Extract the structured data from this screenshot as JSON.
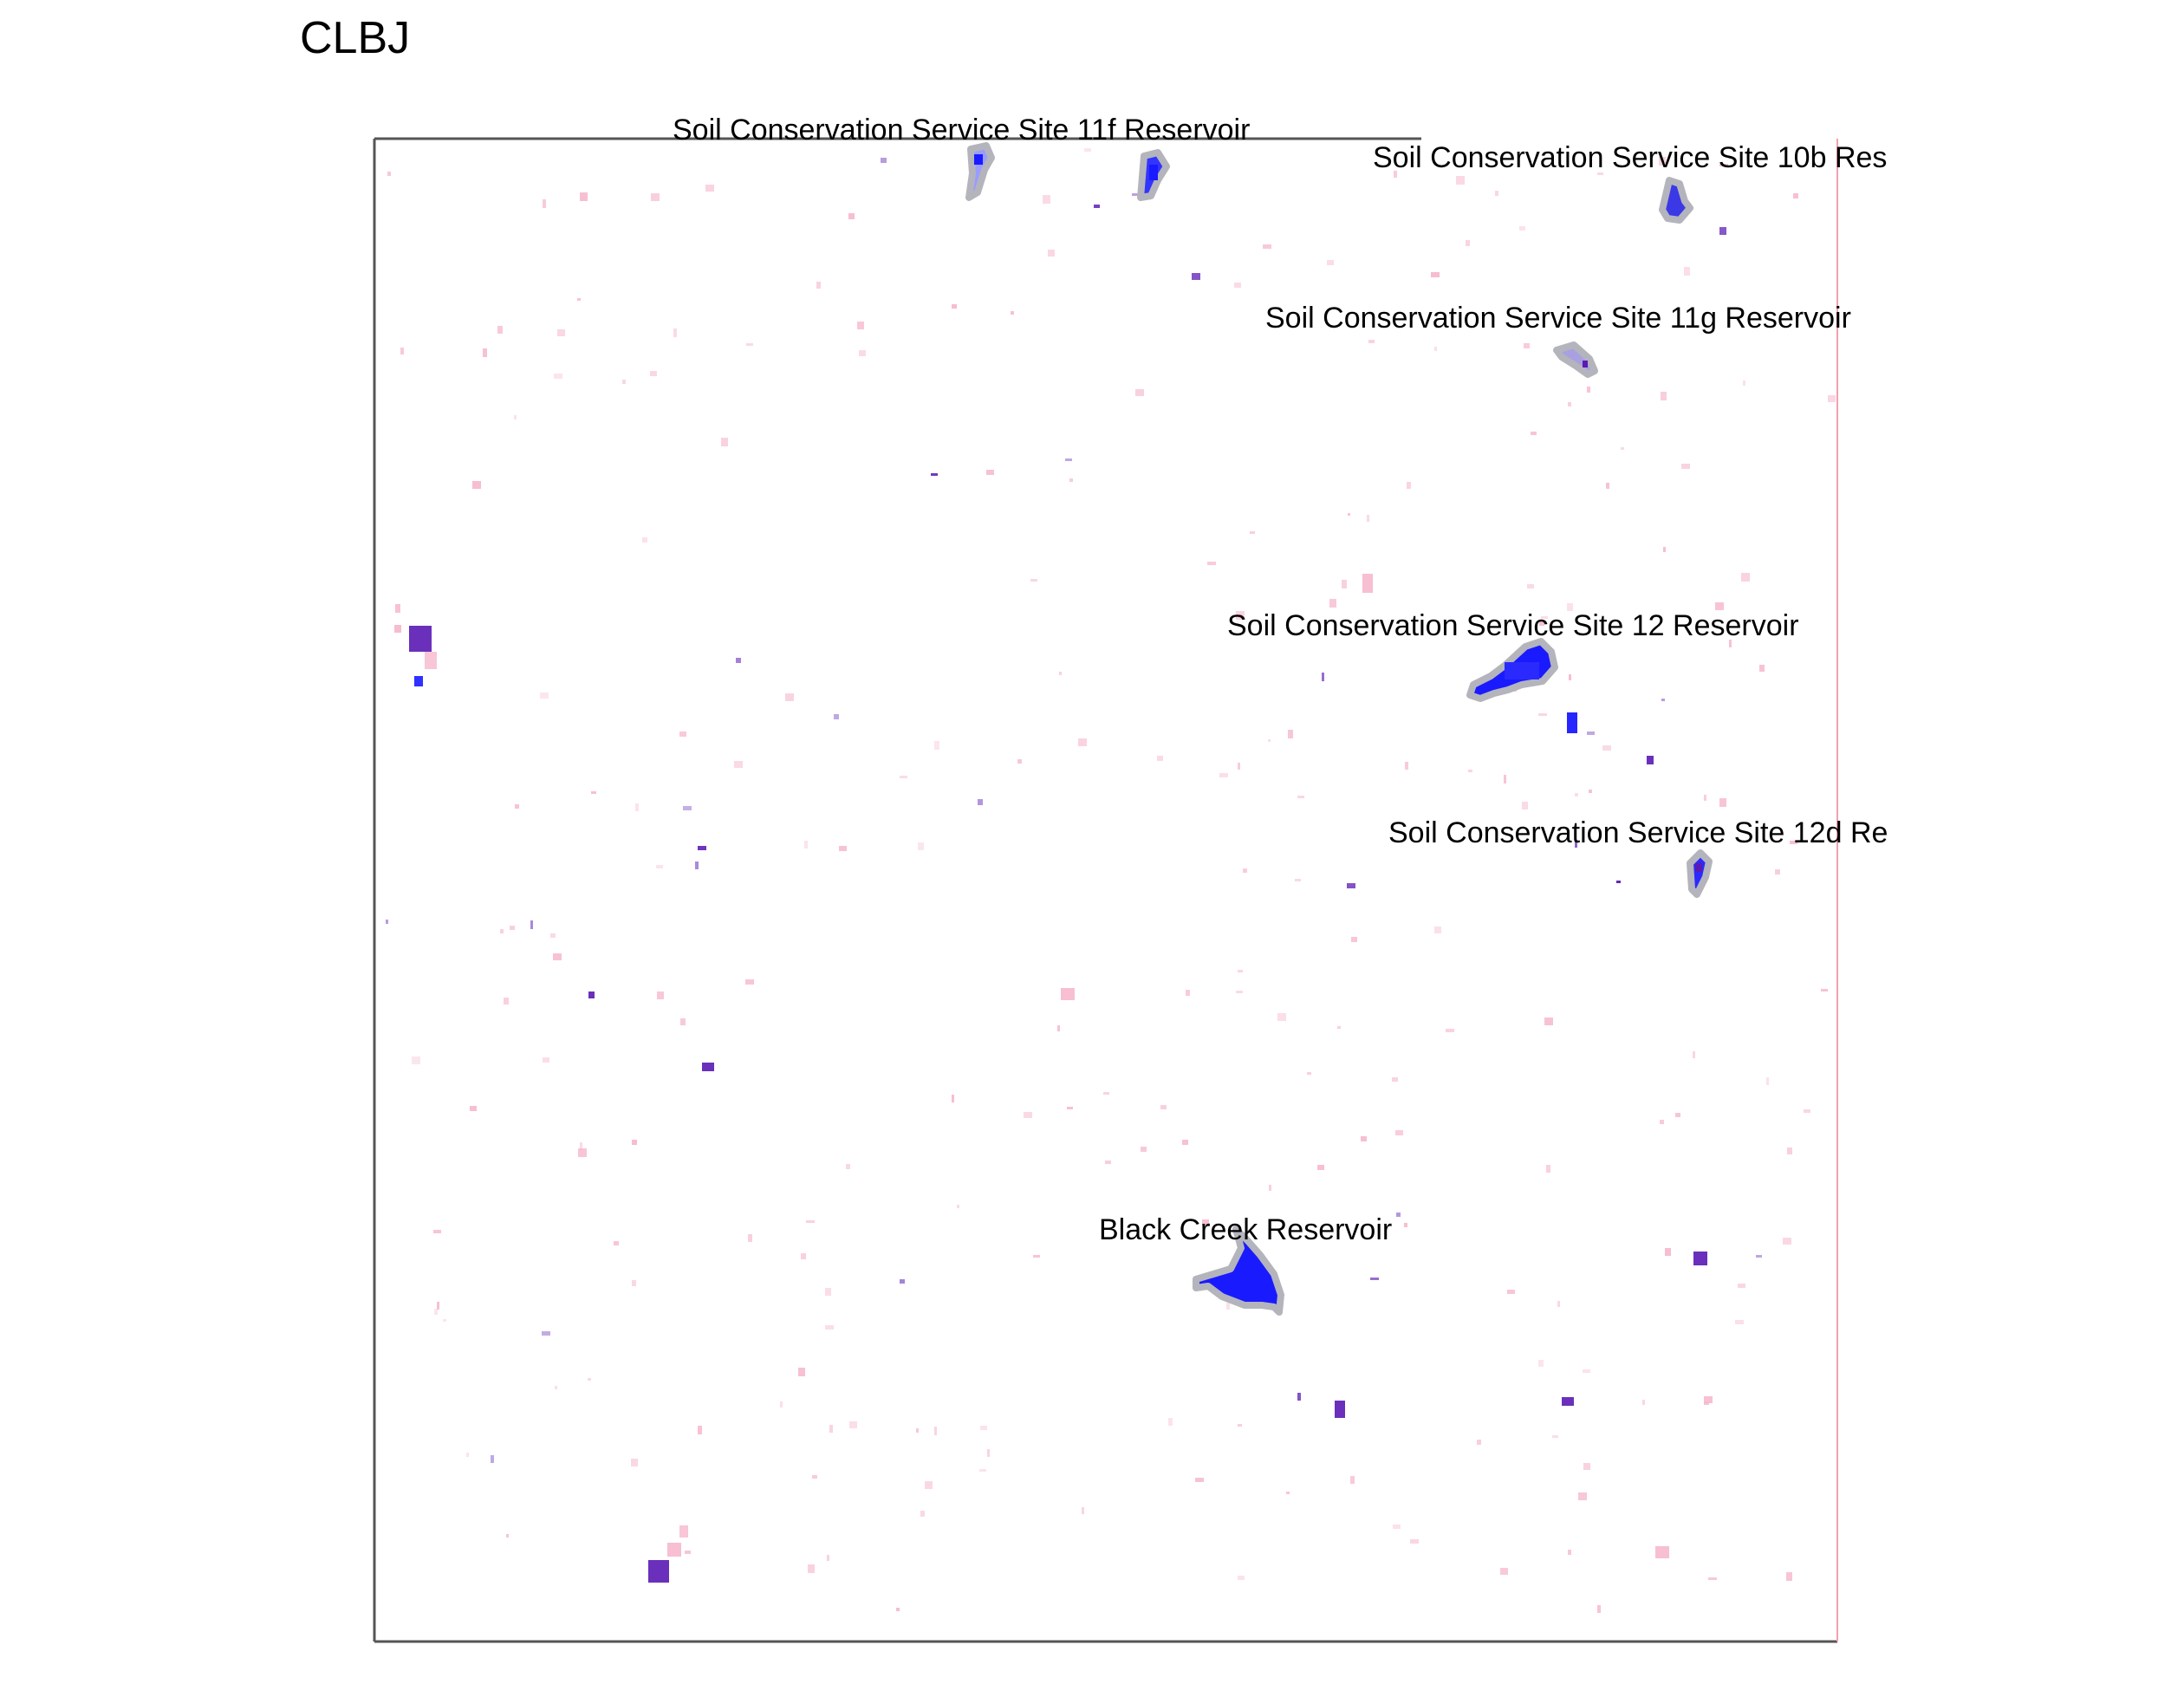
{
  "title": "CLBJ",
  "reservoir_labels": [
    "Soil Conservation Service Site 11f Reservoir",
    "Soil Conservation Service Site 10b Res",
    "Soil Conservation Service Site 11g Reservoir",
    "Soil Conservation Service Site 12 Reservoir",
    "Soil Conservation Service Site 12d Re",
    "Black Creek Reservoir"
  ],
  "colors": {
    "water": "#1a1aff",
    "water_dark": "#5a1ab4",
    "pixel_light": "#f6b8cc",
    "outline": "#b4b4bc",
    "frame": "#555555",
    "right_edge": "#f4a0b0"
  }
}
